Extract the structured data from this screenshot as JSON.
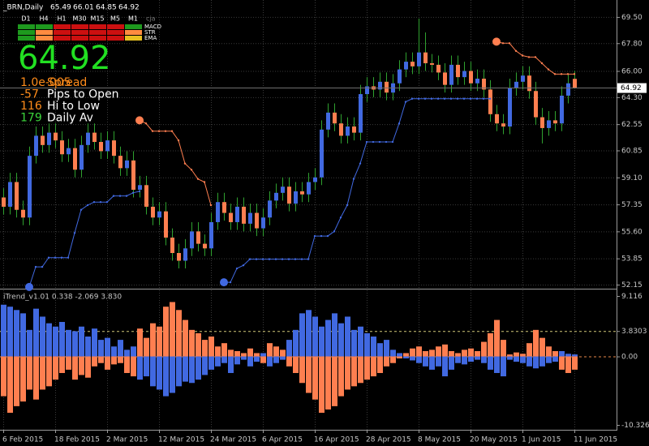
{
  "chart_data": [
    {
      "type": "candlestick",
      "title": "_BRN,Daily",
      "categories": [
        "6 Feb 2015",
        null,
        null,
        null,
        null,
        null,
        null,
        null,
        "18 Feb 2015",
        null,
        null,
        null,
        null,
        null,
        null,
        null,
        "2 Mar 2015",
        null,
        null,
        null,
        null,
        null,
        null,
        null,
        "12 Mar 2015",
        null,
        null,
        null,
        null,
        null,
        null,
        null,
        "24 Mar 2015",
        null,
        null,
        null,
        null,
        null,
        null,
        null,
        "6 Apr 2015",
        null,
        null,
        null,
        null,
        null,
        null,
        null,
        "16 Apr 2015",
        null,
        null,
        null,
        null,
        null,
        null,
        null,
        "28 Apr 2015",
        null,
        null,
        null,
        null,
        null,
        null,
        null,
        "8 May 2015",
        null,
        null,
        null,
        null,
        null,
        null,
        null,
        "20 May 2015",
        null,
        null,
        null,
        null,
        null,
        null,
        null,
        "1 Jun 2015",
        null,
        null,
        null,
        null,
        null,
        null,
        null,
        "11 Jun 2015"
      ],
      "open": [
        57.8,
        57.2,
        58.8,
        57.0,
        56.5,
        60.5,
        61.8,
        61.2,
        62.0,
        61.5,
        60.6,
        61.0,
        59.6,
        61.2,
        62.0,
        61.4,
        60.8,
        61.5,
        60.5,
        59.7,
        60.2,
        58.3,
        58.6,
        57.2,
        56.5,
        56.9,
        55.2,
        54.2,
        53.7,
        54.5,
        55.6,
        54.8,
        54.5,
        56.2,
        57.5,
        56.8,
        56.2,
        57.2,
        56.1,
        56.8,
        55.8,
        56.5,
        57.6,
        58.1,
        58.5,
        57.4,
        58.2,
        58.0,
        58.8,
        59.1,
        62.2,
        63.3,
        62.6,
        61.8,
        62.4,
        62.0,
        64.5,
        65.0,
        64.8,
        65.3,
        64.6,
        65.2,
        66.1,
        66.6,
        66.3,
        67.2,
        66.5,
        66.4,
        65.9,
        65.1,
        66.4,
        65.6,
        66.0,
        65.2,
        65.5,
        64.8,
        63.2,
        62.6,
        62.4,
        64.9,
        65.3,
        65.7,
        64.7,
        63.0,
        62.3,
        62.8,
        62.6,
        64.4,
        65.49
      ],
      "high": [
        58.4,
        59.4,
        59.4,
        57.6,
        61.1,
        62.4,
        62.4,
        62.6,
        62.6,
        62.1,
        61.6,
        61.6,
        61.8,
        62.6,
        62.6,
        62.0,
        62.1,
        62.1,
        61.1,
        60.8,
        60.8,
        59.2,
        59.2,
        57.8,
        57.5,
        57.5,
        55.8,
        54.8,
        55.1,
        56.2,
        56.2,
        55.4,
        56.8,
        58.1,
        58.1,
        57.4,
        57.8,
        57.8,
        57.4,
        57.4,
        57.1,
        58.2,
        58.7,
        59.1,
        59.1,
        58.8,
        58.8,
        59.4,
        59.7,
        62.8,
        63.9,
        63.9,
        63.2,
        63.0,
        63.0,
        65.1,
        65.6,
        65.6,
        65.9,
        65.9,
        65.8,
        66.7,
        67.2,
        67.2,
        69.4,
        68.5,
        67.1,
        67.0,
        66.5,
        67.0,
        67.0,
        66.6,
        66.6,
        66.1,
        66.1,
        65.4,
        63.8,
        63.2,
        65.5,
        65.9,
        66.3,
        66.3,
        65.3,
        63.6,
        63.4,
        63.4,
        65.0,
        65.8,
        66.01
      ],
      "low": [
        56.7,
        56.7,
        56.5,
        56.0,
        56.0,
        60.0,
        60.7,
        60.7,
        61.0,
        60.1,
        60.1,
        59.1,
        59.1,
        60.7,
        60.9,
        60.3,
        60.3,
        60.0,
        59.2,
        59.2,
        57.8,
        57.8,
        56.7,
        56.0,
        56.0,
        54.7,
        53.7,
        53.2,
        53.2,
        54.0,
        54.3,
        54.0,
        54.0,
        55.7,
        56.3,
        55.7,
        55.7,
        55.6,
        55.6,
        55.3,
        55.3,
        56.0,
        57.1,
        57.6,
        56.9,
        56.9,
        57.5,
        57.5,
        58.3,
        58.6,
        61.7,
        62.1,
        61.3,
        61.3,
        61.5,
        61.5,
        64.0,
        64.3,
        64.3,
        64.1,
        64.1,
        64.7,
        65.6,
        65.8,
        65.8,
        66.0,
        65.9,
        65.4,
        64.6,
        64.6,
        65.1,
        65.1,
        64.7,
        64.7,
        64.3,
        62.7,
        62.1,
        61.9,
        61.9,
        64.4,
        64.8,
        64.2,
        62.5,
        61.3,
        61.8,
        62.1,
        62.1,
        63.9,
        64.85
      ],
      "close": [
        57.2,
        58.8,
        57.0,
        56.5,
        60.5,
        61.8,
        61.2,
        62.0,
        61.5,
        60.6,
        61.0,
        59.6,
        61.2,
        62.0,
        61.4,
        60.8,
        61.5,
        60.5,
        59.7,
        60.2,
        58.3,
        58.6,
        57.2,
        56.5,
        56.9,
        55.2,
        54.2,
        53.7,
        54.5,
        55.6,
        54.8,
        54.5,
        56.2,
        57.5,
        56.8,
        56.2,
        57.2,
        56.1,
        56.8,
        55.8,
        56.5,
        57.6,
        58.1,
        58.5,
        57.4,
        58.2,
        58.0,
        58.8,
        59.1,
        62.2,
        63.3,
        62.6,
        61.8,
        62.4,
        62.0,
        64.5,
        65.0,
        64.8,
        65.3,
        64.6,
        65.2,
        66.1,
        66.6,
        66.3,
        67.2,
        66.5,
        66.4,
        65.9,
        65.1,
        66.4,
        65.6,
        66.0,
        65.2,
        65.5,
        64.8,
        63.2,
        62.6,
        62.4,
        64.9,
        65.3,
        65.7,
        64.7,
        63.0,
        62.3,
        62.8,
        62.6,
        64.4,
        65.2,
        64.92
      ],
      "up_color": "#4169e1",
      "down_color": "#ff7f50",
      "wick_color": "#2fa12f",
      "lines": [
        {
          "color": "#4169e1",
          "values": [
            null,
            null,
            null,
            null,
            52.0,
            53.3,
            53.3,
            53.9,
            53.9,
            53.9,
            53.9,
            55.5,
            57.0,
            57.3,
            57.5,
            57.5,
            57.5,
            57.9,
            57.9,
            57.9,
            58.1,
            58.2,
            null,
            null,
            null,
            null,
            null,
            null,
            null,
            null,
            null,
            null,
            null,
            null,
            52.3,
            52.3,
            53.2,
            53.4,
            53.8,
            53.8,
            53.8,
            53.8,
            53.8,
            53.8,
            53.8,
            53.8,
            53.8,
            53.8,
            55.3,
            55.3,
            55.3,
            55.6,
            56.5,
            57.3,
            59.0,
            60.0,
            61.4,
            61.4,
            61.4,
            61.4,
            61.4,
            62.6,
            64.0,
            64.2,
            64.2,
            64.2,
            64.2,
            64.2,
            64.2,
            64.2,
            64.2,
            64.2,
            64.2,
            64.2,
            64.2,
            64.2,
            null,
            null,
            null,
            null,
            null,
            null,
            null,
            null,
            null,
            null,
            null,
            null,
            null
          ]
        },
        {
          "color": "#ff7f50",
          "values": [
            null,
            null,
            null,
            null,
            null,
            null,
            null,
            null,
            null,
            null,
            null,
            null,
            null,
            null,
            null,
            null,
            null,
            null,
            null,
            null,
            null,
            62.8,
            62.6,
            62.1,
            62.1,
            62.1,
            62.1,
            61.5,
            60.0,
            59.6,
            59.0,
            58.8,
            57.3,
            null,
            null,
            null,
            null,
            null,
            null,
            null,
            null,
            null,
            null,
            null,
            null,
            null,
            null,
            null,
            null,
            null,
            null,
            null,
            null,
            null,
            null,
            null,
            null,
            null,
            null,
            null,
            null,
            null,
            null,
            null,
            null,
            null,
            null,
            null,
            null,
            null,
            null,
            null,
            null,
            null,
            null,
            null,
            67.9,
            67.8,
            67.8,
            67.3,
            67.0,
            66.9,
            66.9,
            66.5,
            66.1,
            65.8,
            65.8,
            65.8,
            65.8
          ]
        }
      ],
      "ylim": [
        51.94,
        70.6
      ],
      "yticks": [
        {
          "value": 69.5,
          "label": "69.50"
        },
        {
          "value": 67.8,
          "label": "67.80"
        },
        {
          "value": 66,
          "label": "66.00"
        },
        {
          "value": 64.3,
          "label": "64.30"
        },
        62.55,
        60.85,
        {
          "value": 59.1,
          "label": "59.10"
        },
        57.35,
        {
          "value": 55.6,
          "label": "55.60"
        },
        53.85,
        52.15
      ],
      "grid": true,
      "price_color": "#22e022",
      "stats": [
        {
          "value": "1.0e-005",
          "label": "Spread",
          "color": "#ff8c1a",
          "label_color": "#ff8c1a"
        },
        {
          "value": -57,
          "label": "Pips to Open",
          "color": "#ff8c1a",
          "label_color": "#ffffff"
        },
        {
          "value": 116,
          "label": "Hi to Low",
          "color": "#ff8c1a",
          "label_color": "#ffffff"
        },
        {
          "value": 179,
          "label": "Daily Av",
          "color": "#3bd43b",
          "label_color": "#ffffff"
        }
      ],
      "signal_panel": {
        "timeframes": [
          "D1",
          "H4",
          "H1",
          "M30",
          "M15",
          "M5",
          "M1"
        ],
        "tag": "cja",
        "rows": [
          {
            "name": "MACD",
            "colors": [
              "#1e9a1e",
              "#1e9a1e",
              "#cc1010",
              "#cc1010",
              "#cc1010",
              "#cc1010",
              "#1e9a1e"
            ]
          },
          {
            "name": "STR",
            "colors": [
              "#1e9a1e",
              "#ff8c40",
              "#cc1010",
              "#cc1010",
              "#cc1010",
              "#cc1010",
              "#ff8c40"
            ]
          },
          {
            "name": "EMA",
            "colors": [
              "#1e9a1e",
              "#ff8c40",
              "#cc1010",
              "#cc1010",
              "#cc1010",
              "#cc1010",
              "#e8c020"
            ]
          }
        ]
      }
    },
    {
      "type": "bar",
      "title": "iTrend_v1.01 0.338 -2.069 3.830",
      "series": [
        {
          "color": "#4169e1",
          "values": [
            7.8,
            7.5,
            7.0,
            6.5,
            4.0,
            7.2,
            6.0,
            5.0,
            4.5,
            5.2,
            4.0,
            3.8,
            4.5,
            3.0,
            4.2,
            2.5,
            2.8,
            1.5,
            2.5,
            1.0,
            1.5,
            -3.5,
            -3.0,
            -4.5,
            -5.0,
            -6.0,
            -5.5,
            -4.5,
            -3.8,
            -4.0,
            -3.5,
            -2.8,
            -2.0,
            -1.5,
            -1.0,
            -2.5,
            -1.2,
            -0.5,
            -1.5,
            -0.8,
            0.5,
            -1.5,
            -1.0,
            -0.5,
            2.5,
            4.0,
            6.5,
            7.0,
            6.0,
            4.5,
            5.5,
            6.5,
            5.0,
            6.0,
            4.0,
            4.5,
            3.5,
            3.0,
            2.0,
            2.5,
            1.0,
            0.5,
            -0.3,
            -0.6,
            -1.0,
            -1.5,
            -2.0,
            -1.5,
            -3.0,
            -2.0,
            -1.0,
            -1.2,
            -0.8,
            -0.5,
            -1.0,
            -2.0,
            -2.5,
            -3.0,
            -0.5,
            -0.8,
            -1.0,
            -1.5,
            -1.8,
            -1.5,
            -1.0,
            -0.8,
            0.8,
            0.4,
            0.3
          ]
        },
        {
          "color": "#ff7f50",
          "values": [
            -6.0,
            -8.5,
            -7.5,
            -6.8,
            -5.0,
            -6.5,
            -5.0,
            -4.5,
            -3.5,
            -2.5,
            -2.0,
            -3.5,
            -2.8,
            -3.2,
            -1.5,
            -1.0,
            -2.0,
            -1.2,
            -1.0,
            -2.5,
            -3.0,
            4.2,
            2.8,
            5.0,
            4.5,
            7.5,
            8.2,
            7.0,
            5.5,
            4.0,
            3.5,
            2.5,
            3.0,
            1.5,
            2.0,
            1.0,
            0.8,
            0.5,
            1.2,
            0.5,
            -1.0,
            2.0,
            1.5,
            1.0,
            -1.5,
            -2.5,
            -4.0,
            -5.5,
            -6.5,
            -8.5,
            -8.0,
            -7.5,
            -6.0,
            -5.0,
            -4.5,
            -4.0,
            -3.5,
            -3.0,
            -2.5,
            -1.5,
            -1.0,
            -0.3,
            0.5,
            1.2,
            1.5,
            0.8,
            1.0,
            1.5,
            1.8,
            0.8,
            0.5,
            1.0,
            1.2,
            0.8,
            2.2,
            3.5,
            5.5,
            2.5,
            0.3,
            0.6,
            0.4,
            2.0,
            4.0,
            2.8,
            1.5,
            0.8,
            -2.0,
            -2.5,
            -2.0
          ]
        }
      ],
      "ylim": [
        -11.06,
        9.97
      ],
      "yticks": [
        9.116,
        3.8303,
        {
          "value": 0,
          "label": "0.00"
        },
        -10.326
      ],
      "level_colors": [
        "#d2c878",
        "#e8874a"
      ]
    }
  ]
}
